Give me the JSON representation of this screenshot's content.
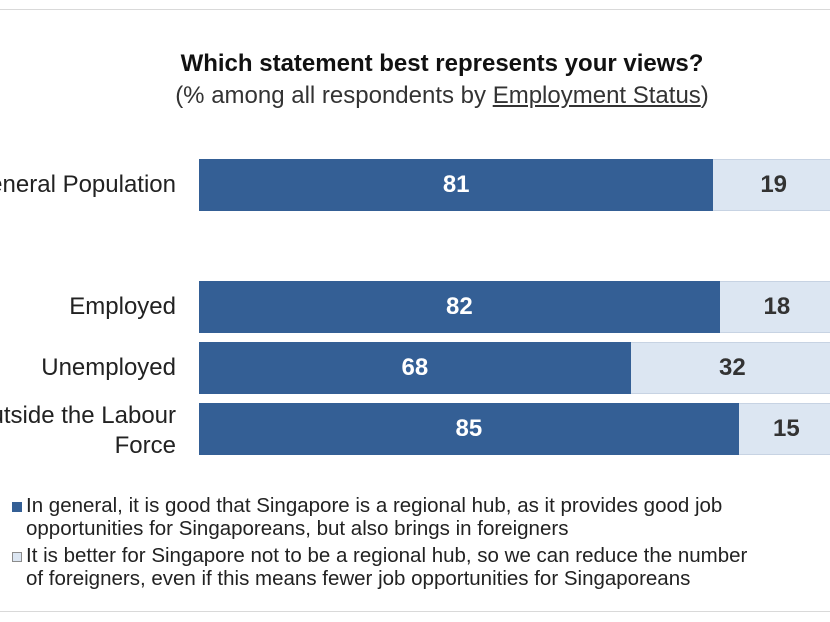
{
  "chart_data": {
    "type": "bar",
    "orientation": "horizontal",
    "stacked": true,
    "title": "Which statement best represents your views?",
    "subtitle_prefix": "(% among all respondents by ",
    "subtitle_link": "Employment Status",
    "subtitle_suffix": ")",
    "categories": [
      "General Population",
      "Employed",
      "Unemployed",
      "Outside the Labour Force"
    ],
    "series": [
      {
        "name": "In general, it is good that Singapore is a regional hub, as it provides good job opportunities for Singaporeans, but also brings in foreigners",
        "values": [
          81,
          82,
          68,
          85
        ],
        "color": "#345f95",
        "label_color": "#ffffff"
      },
      {
        "name": "It is better for Singapore not to be a regional hub, so we can reduce the number of foreigners, even if this means fewer job opportunities for Singaporeans",
        "values": [
          19,
          18,
          32,
          15
        ],
        "color": "#dce6f2",
        "label_color": "#333333"
      }
    ],
    "xlim": [
      0,
      100
    ],
    "grid": false,
    "legend_position": "bottom"
  },
  "legend": {
    "item1_line1": "In general, it is good that Singapore is a regional hub, as it provides good job",
    "item1_line2": "opportunities for Singaporeans, but also brings in foreigners",
    "item2_line1": "It is better for Singapore not to be a regional hub, so we can reduce the number",
    "item2_line2": "of foreigners, even if this means fewer job opportunities for Singaporeans"
  }
}
